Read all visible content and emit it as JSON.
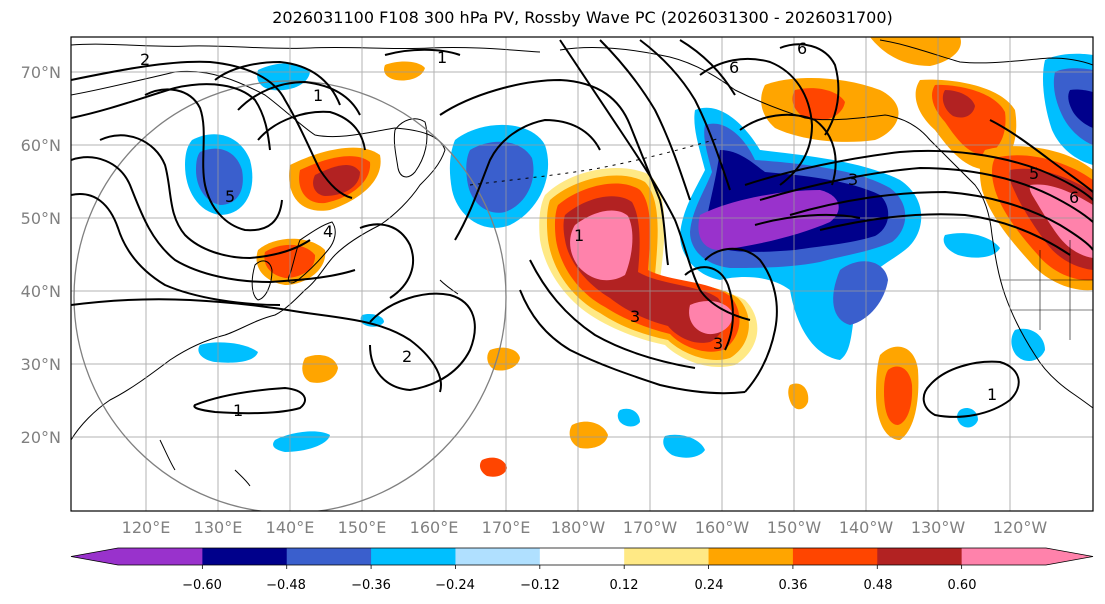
{
  "title": "2026031100 F108 300 hPa PV, Rossby Wave PC (2026031300 - 2026031700)",
  "lat_labels": [
    "70°N",
    "60°N",
    "50°N",
    "40°N",
    "30°N",
    "20°N"
  ],
  "lon_labels": [
    "120°E",
    "130°E",
    "140°E",
    "150°E",
    "160°E",
    "170°E",
    "180°W",
    "170°W",
    "160°W",
    "150°W",
    "140°W",
    "130°W",
    "120°W"
  ],
  "contour_labels": [
    "1",
    "1",
    "1",
    "1",
    "1",
    "2",
    "2",
    "3",
    "3",
    "3",
    "4",
    "5",
    "5",
    "6",
    "6",
    "6"
  ],
  "colorbar": {
    "ticks": [
      "−0.60",
      "−0.48",
      "−0.36",
      "−0.24",
      "−0.12",
      "0.12",
      "0.24",
      "0.36",
      "0.48",
      "0.60"
    ],
    "colors": [
      "#9932cc",
      "#00008b",
      "#3a5fcd",
      "#00bfff",
      "#b0e0ff",
      "#ffffff",
      "#ffe985",
      "#ffa500",
      "#ff4500",
      "#b22222",
      "#ff82ab"
    ]
  }
}
